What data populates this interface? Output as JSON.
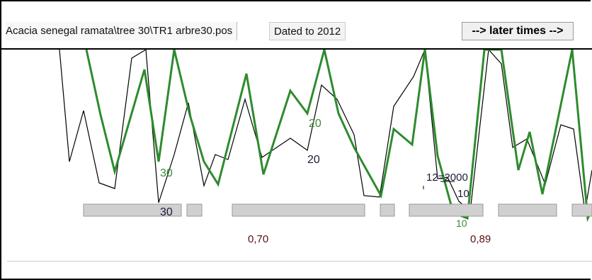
{
  "window": {
    "file_path": "Acacia senegal ramata\\tree 30\\TR1 arbre30.pos",
    "dated_text": "Dated to 2012",
    "later_button": "--> later times -->"
  },
  "colors": {
    "master_line": "#000000",
    "sample_line": "#2e8b2e",
    "segment_fill": "#d0d0d0"
  },
  "plot": {
    "sample_label_green": "20",
    "sample_label_green2": "30",
    "master_label_dark": "20",
    "master_label_dark2": "30",
    "year_label": "12=2000",
    "label_10": "10",
    "label_10b": "10",
    "correlation_1": "0,70",
    "correlation_2": "0,89"
  }
}
